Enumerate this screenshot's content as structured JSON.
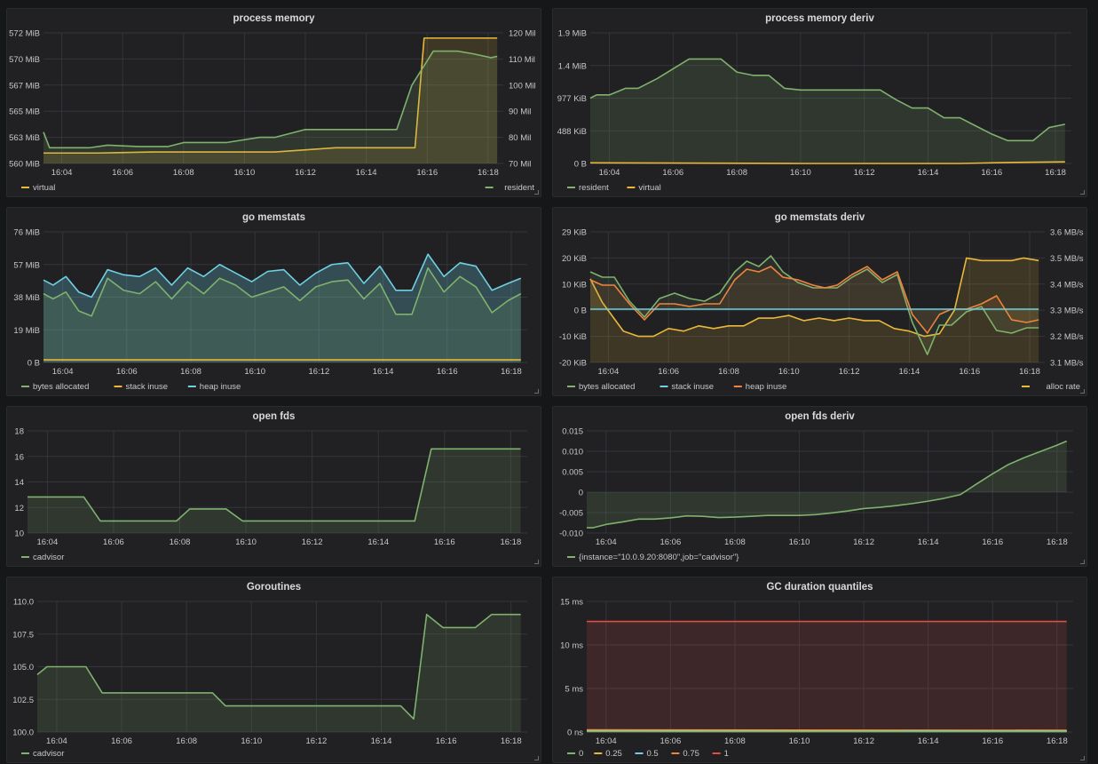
{
  "x_ticks": [
    "16:04",
    "16:06",
    "16:08",
    "16:10",
    "16:12",
    "16:14",
    "16:16",
    "16:18"
  ],
  "x_tick_minutes": [
    4,
    6,
    8,
    10,
    12,
    14,
    16,
    18
  ],
  "x_range": [
    3.4,
    18.5
  ],
  "colors": {
    "green": "#7eb26d",
    "yellow": "#eab839",
    "blue": "#6ed0e0",
    "orange": "#ef843c",
    "red": "#e24d42",
    "grid": "#34353a",
    "text": "#c7c7c9"
  },
  "charts": [
    {
      "id": "process-memory",
      "title": "process memory",
      "left_axis": {
        "ticks": [
          "560 MiB",
          "563 MiB",
          "565 MiB",
          "567 MiB",
          "570 MiB",
          "572 MiB"
        ],
        "range": [
          560,
          572.5
        ]
      },
      "right_axis": {
        "ticks": [
          "70 Mil",
          "80 Mil",
          "90 Mil",
          "100 Mil",
          "110 Mil",
          "120 Mil"
        ],
        "range": [
          70,
          120
        ]
      },
      "legend": [
        {
          "name": "virtual",
          "color": "yellow",
          "side": "left"
        },
        {
          "name": "resident",
          "color": "green",
          "side": "right"
        }
      ],
      "series": [
        {
          "name": "virtual",
          "axis": "left",
          "color": "yellow",
          "fill": 0.15,
          "x": [
            3.4,
            5.2,
            7.0,
            9.0,
            11.0,
            13.0,
            15.6,
            15.9,
            18.3
          ],
          "y": [
            561.0,
            561.0,
            561.1,
            561.1,
            561.1,
            561.5,
            561.5,
            572.0,
            572.0
          ]
        },
        {
          "name": "resident",
          "axis": "right",
          "color": "green",
          "fill": 0.15,
          "x": [
            3.4,
            3.6,
            4.0,
            4.9,
            5.5,
            6.5,
            7.5,
            8.0,
            9.0,
            9.4,
            10.5,
            11.0,
            12.0,
            13.0,
            14.0,
            15.0,
            15.5,
            16.2,
            17.0,
            17.5,
            18.1,
            18.3
          ],
          "y": [
            82,
            76,
            76,
            76,
            77,
            76.5,
            76.5,
            78,
            78,
            78,
            80,
            80,
            83,
            83,
            83,
            83,
            100,
            113,
            113,
            112,
            110.5,
            111
          ]
        }
      ]
    },
    {
      "id": "process-memory-deriv",
      "title": "process memory deriv",
      "left_axis": {
        "ticks": [
          "0 B",
          "488 KiB",
          "977 KiB",
          "1.4 MiB",
          "1.9 MiB"
        ],
        "range": [
          0,
          4
        ]
      },
      "legend": [
        {
          "name": "resident",
          "color": "green",
          "side": "left"
        },
        {
          "name": "virtual",
          "color": "yellow",
          "side": "left"
        }
      ],
      "series": [
        {
          "name": "resident",
          "axis": "left",
          "color": "green",
          "fill": 0.15,
          "x": [
            3.4,
            3.6,
            4.0,
            4.5,
            4.9,
            5.5,
            6.0,
            6.5,
            7.0,
            7.5,
            8.0,
            8.5,
            9.0,
            9.5,
            10.0,
            11.0,
            12.0,
            12.5,
            13.0,
            13.5,
            14.0,
            14.5,
            15.0,
            15.5,
            16.0,
            16.5,
            16.9,
            17.3,
            17.8,
            18.3
          ],
          "y": [
            2.0,
            2.1,
            2.1,
            2.3,
            2.3,
            2.6,
            2.9,
            3.2,
            3.2,
            3.2,
            2.8,
            2.7,
            2.7,
            2.3,
            2.25,
            2.25,
            2.25,
            2.25,
            1.95,
            1.7,
            1.7,
            1.4,
            1.4,
            1.15,
            0.9,
            0.7,
            0.7,
            0.7,
            1.1,
            1.2
          ]
        },
        {
          "name": "virtual",
          "axis": "left",
          "color": "yellow",
          "fill": 0,
          "x": [
            3.4,
            10,
            15,
            16.5,
            18.3
          ],
          "y": [
            0.02,
            0.0,
            0.0,
            0.03,
            0.05
          ]
        }
      ]
    },
    {
      "id": "go-memstats",
      "title": "go memstats",
      "left_axis": {
        "ticks": [
          "0 B",
          "19 MiB",
          "38 MiB",
          "57 MiB",
          "76 MiB"
        ],
        "range": [
          0,
          76
        ]
      },
      "legend": [
        {
          "name": "bytes allocated",
          "color": "green",
          "side": "left"
        },
        {
          "name": "stack inuse",
          "color": "yellow",
          "side": "left"
        },
        {
          "name": "heap inuse",
          "color": "blue",
          "side": "left"
        }
      ],
      "series": [
        {
          "name": "heap inuse",
          "axis": "left",
          "color": "blue",
          "fill": 0.25,
          "x": [
            3.4,
            3.7,
            4.1,
            4.5,
            4.9,
            5.4,
            5.9,
            6.4,
            6.9,
            7.4,
            7.9,
            8.4,
            8.9,
            9.4,
            9.9,
            10.4,
            10.9,
            11.4,
            11.9,
            12.4,
            12.9,
            13.4,
            13.9,
            14.4,
            14.9,
            15.4,
            15.9,
            16.4,
            16.9,
            17.4,
            17.9,
            18.3
          ],
          "y": [
            48,
            45,
            50,
            41,
            38,
            54,
            51,
            50,
            55,
            45,
            55,
            50,
            57,
            52,
            47,
            53,
            54,
            45,
            52,
            57,
            58,
            46,
            56,
            42,
            42,
            63,
            50,
            58,
            56,
            42,
            46,
            49
          ]
        },
        {
          "name": "bytes allocated",
          "axis": "left",
          "color": "green",
          "fill": 0.15,
          "x": [
            3.4,
            3.7,
            4.1,
            4.5,
            4.9,
            5.4,
            5.9,
            6.4,
            6.9,
            7.4,
            7.9,
            8.4,
            8.9,
            9.4,
            9.9,
            10.4,
            10.9,
            11.4,
            11.9,
            12.4,
            12.9,
            13.4,
            13.9,
            14.4,
            14.9,
            15.4,
            15.9,
            16.4,
            16.9,
            17.4,
            17.9,
            18.3
          ],
          "y": [
            40,
            37,
            41,
            30,
            27,
            49,
            42,
            40,
            47,
            37,
            47,
            40,
            49,
            45,
            38,
            41,
            44,
            36,
            44,
            47,
            48,
            37,
            46,
            28,
            28,
            55,
            41,
            50,
            44,
            29,
            36,
            40
          ]
        },
        {
          "name": "stack inuse",
          "axis": "left",
          "color": "yellow",
          "fill": 0,
          "x": [
            3.4,
            18.3
          ],
          "y": [
            1.5,
            1.5
          ]
        }
      ]
    },
    {
      "id": "go-memstats-deriv",
      "title": "go memstats deriv",
      "left_axis": {
        "ticks": [
          "-20 KiB",
          "-10 KiB",
          "0 B",
          "10 KiB",
          "20 KiB",
          "29 KiB"
        ],
        "range": [
          -20,
          29
        ]
      },
      "right_axis": {
        "ticks": [
          "3.1 MB/s",
          "3.2 MB/s",
          "3.3 MB/s",
          "3.4 MB/s",
          "3.5 MB/s",
          "3.6 MB/s"
        ],
        "range": [
          3.1,
          3.6
        ]
      },
      "legend": [
        {
          "name": "bytes allocated",
          "color": "green",
          "side": "left"
        },
        {
          "name": "stack inuse",
          "color": "blue",
          "side": "left"
        },
        {
          "name": "heap inuse",
          "color": "orange",
          "side": "left"
        },
        {
          "name": "alloc rate",
          "color": "yellow",
          "side": "right"
        }
      ],
      "series": [
        {
          "name": "alloc rate",
          "axis": "right",
          "color": "yellow",
          "fill": 0.15,
          "x": [
            3.4,
            3.8,
            4.5,
            5.0,
            5.5,
            6.0,
            6.5,
            7.0,
            7.5,
            8.0,
            8.5,
            9.0,
            9.5,
            10.0,
            10.5,
            11.0,
            11.5,
            12.0,
            12.5,
            13.0,
            13.5,
            14.0,
            14.5,
            15.0,
            15.5,
            15.9,
            16.4,
            16.9,
            17.4,
            17.8,
            18.3
          ],
          "y": [
            3.42,
            3.33,
            3.22,
            3.2,
            3.2,
            3.23,
            3.22,
            3.24,
            3.23,
            3.24,
            3.24,
            3.27,
            3.27,
            3.28,
            3.26,
            3.27,
            3.26,
            3.27,
            3.26,
            3.26,
            3.23,
            3.22,
            3.2,
            3.21,
            3.3,
            3.5,
            3.49,
            3.49,
            3.49,
            3.5,
            3.49
          ]
        },
        {
          "name": "bytes allocated",
          "axis": "left",
          "color": "green",
          "fill": 0.1,
          "x": [
            3.4,
            3.8,
            4.2,
            4.7,
            5.2,
            5.7,
            6.2,
            6.7,
            7.2,
            7.7,
            8.2,
            8.6,
            9.0,
            9.4,
            9.8,
            10.3,
            10.8,
            11.2,
            11.6,
            12.1,
            12.6,
            13.1,
            13.6,
            14.1,
            14.6,
            15.0,
            15.4,
            15.9,
            16.4,
            16.9,
            17.4,
            17.9,
            18.3
          ],
          "y": [
            14,
            12,
            12,
            3,
            -3,
            4,
            6,
            4,
            3,
            6,
            14,
            18,
            16,
            20,
            14,
            10,
            8,
            8,
            8,
            12,
            15,
            10,
            13,
            -5,
            -17,
            -6,
            -6,
            -1,
            1,
            -8,
            -9,
            -7,
            -7
          ]
        },
        {
          "name": "heap inuse",
          "axis": "left",
          "color": "orange",
          "fill": 0.1,
          "x": [
            3.4,
            3.8,
            4.2,
            4.7,
            5.2,
            5.7,
            6.2,
            6.7,
            7.2,
            7.7,
            8.2,
            8.6,
            9.0,
            9.4,
            9.8,
            10.3,
            10.8,
            11.2,
            11.6,
            12.1,
            12.6,
            13.1,
            13.6,
            14.1,
            14.6,
            15.0,
            15.4,
            15.9,
            16.4,
            16.9,
            17.4,
            17.9,
            18.3
          ],
          "y": [
            11,
            9,
            9,
            2,
            -4,
            2,
            2,
            1,
            2,
            2,
            11,
            15,
            14,
            16,
            12,
            11,
            9,
            8,
            9,
            13,
            16,
            11,
            14,
            -2,
            -9,
            -2,
            0,
            0,
            2,
            5,
            -4,
            -5,
            -4
          ]
        },
        {
          "name": "stack inuse",
          "axis": "left",
          "color": "blue",
          "fill": 0,
          "x": [
            3.4,
            18.3
          ],
          "y": [
            0,
            0
          ]
        }
      ]
    },
    {
      "id": "open-fds",
      "title": "open fds",
      "left_axis": {
        "ticks": [
          "10",
          "12",
          "14",
          "16",
          "18"
        ],
        "range": [
          10,
          18.5
        ]
      },
      "legend": [
        {
          "name": "cadvisor",
          "color": "green",
          "side": "left"
        }
      ],
      "series": [
        {
          "name": "cadvisor",
          "axis": "left",
          "color": "green",
          "fill": 0.15,
          "x": [
            3.4,
            5.1,
            5.6,
            7.9,
            8.3,
            9.4,
            9.9,
            15.1,
            15.6,
            18.3
          ],
          "y": [
            13,
            13,
            11,
            11,
            12,
            12,
            11,
            11,
            17,
            17
          ]
        }
      ]
    },
    {
      "id": "open-fds-deriv",
      "title": "open fds deriv",
      "left_axis": {
        "ticks": [
          "-0.010",
          "-0.005",
          "0",
          "0.005",
          "0.010",
          "0.015"
        ],
        "range": [
          -0.01,
          0.015
        ]
      },
      "legend": [
        {
          "name": "{instance=\"10.0.9.20:8080\",job=\"cadvisor\"}",
          "color": "green",
          "side": "left"
        }
      ],
      "series": [
        {
          "name": "{instance=\"10.0.9.20:8080\",job=\"cadvisor\"}",
          "axis": "left",
          "color": "green",
          "fill": 0.15,
          "x": [
            3.4,
            3.6,
            4.0,
            4.5,
            5.0,
            5.5,
            6.0,
            6.5,
            7.0,
            7.5,
            8.0,
            8.5,
            9.0,
            9.5,
            10.0,
            10.5,
            11.0,
            11.5,
            12.0,
            12.5,
            13.0,
            13.5,
            14.0,
            14.5,
            15.0,
            15.5,
            16.0,
            16.5,
            17.0,
            17.5,
            18.0,
            18.3
          ],
          "y": [
            -0.0087,
            -0.0087,
            -0.0079,
            -0.0073,
            -0.0066,
            -0.0066,
            -0.0063,
            -0.0058,
            -0.0059,
            -0.0062,
            -0.0061,
            -0.0059,
            -0.0057,
            -0.0057,
            -0.0057,
            -0.0055,
            -0.0051,
            -0.0046,
            -0.004,
            -0.0037,
            -0.0033,
            -0.0028,
            -0.0022,
            -0.0015,
            -0.0006,
            0.002,
            0.0045,
            0.0068,
            0.0085,
            0.01,
            0.0115,
            0.0125
          ]
        }
      ]
    },
    {
      "id": "goroutines",
      "title": "Goroutines",
      "left_axis": {
        "ticks": [
          "100.0",
          "102.5",
          "105.0",
          "107.5",
          "110.0"
        ],
        "range": [
          100,
          110
        ]
      },
      "legend": [
        {
          "name": "cadvisor",
          "color": "green",
          "side": "left"
        }
      ],
      "series": [
        {
          "name": "cadvisor",
          "axis": "left",
          "color": "green",
          "fill": 0.15,
          "x": [
            3.4,
            3.7,
            4.9,
            5.4,
            8.8,
            9.2,
            14.6,
            15.0,
            15.4,
            15.9,
            16.9,
            17.4,
            18.3
          ],
          "y": [
            104.4,
            105,
            105,
            103,
            103,
            102,
            102,
            101,
            109,
            108,
            108,
            109,
            109
          ]
        }
      ]
    },
    {
      "id": "gc-duration-quantiles",
      "title": "GC duration quantiles",
      "left_axis": {
        "ticks": [
          "0 ns",
          "5 ms",
          "10 ms",
          "15 ms"
        ],
        "range": [
          0,
          15
        ]
      },
      "legend": [
        {
          "name": "0",
          "color": "green",
          "side": "left"
        },
        {
          "name": "0.25",
          "color": "yellow",
          "side": "left"
        },
        {
          "name": "0.5",
          "color": "blue",
          "side": "left"
        },
        {
          "name": "0.75",
          "color": "orange",
          "side": "left"
        },
        {
          "name": "1",
          "color": "red",
          "side": "left"
        }
      ],
      "series": [
        {
          "name": "1",
          "axis": "left",
          "color": "red",
          "fill": 0.15,
          "x": [
            3.4,
            18.3
          ],
          "y": [
            12.7,
            12.7
          ]
        },
        {
          "name": "0.75",
          "axis": "left",
          "color": "orange",
          "fill": 0,
          "x": [
            3.4,
            18.3
          ],
          "y": [
            0.25,
            0.2
          ]
        },
        {
          "name": "0.5",
          "axis": "left",
          "color": "blue",
          "fill": 0,
          "x": [
            3.4,
            18.3
          ],
          "y": [
            0.15,
            0.12
          ]
        },
        {
          "name": "0.25",
          "axis": "left",
          "color": "yellow",
          "fill": 0,
          "x": [
            3.4,
            18.3
          ],
          "y": [
            0.1,
            0.08
          ]
        },
        {
          "name": "0",
          "axis": "left",
          "color": "green",
          "fill": 0,
          "x": [
            3.4,
            18.3
          ],
          "y": [
            0.05,
            0.04
          ]
        }
      ]
    }
  ]
}
